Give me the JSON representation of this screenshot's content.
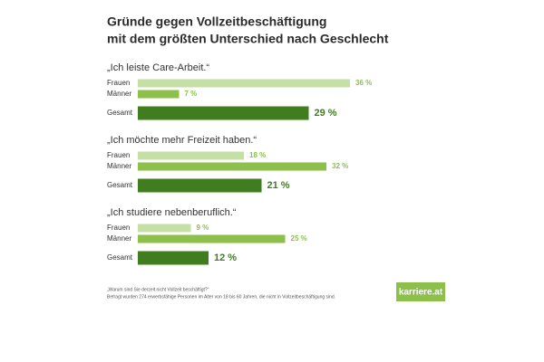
{
  "chart_data": {
    "type": "bar",
    "title": [
      "Gründe gegen Vollzeitbeschäftigung",
      "mit dem größten Unterschied nach Geschlecht"
    ],
    "categories": [
      "„Ich leiste Care-Arbeit.“",
      "„Ich möchte mehr Freizeit haben.“",
      "„Ich studiere nebenberuflich.“"
    ],
    "series": [
      {
        "name": "Frauen",
        "color": "#c5e0a5",
        "values": [
          36,
          18,
          9
        ],
        "value_labels": [
          "36 %",
          "18 %",
          "9 %"
        ]
      },
      {
        "name": "Männer",
        "color": "#8cc04a",
        "values": [
          7,
          32,
          25
        ],
        "value_labels": [
          "7 %",
          "32 %",
          "25 %"
        ]
      },
      {
        "name": "Gesamt",
        "color": "#3f7d1e",
        "values": [
          29,
          21,
          12
        ],
        "value_labels": [
          "29 %",
          "21 %",
          "12 %"
        ]
      }
    ],
    "footnotes": [
      "„Warum sind Sie derzeit nicht Vollzeit beschäftigt?“",
      "Befragt wurden 274 erwerbsfähige Personen im Alter von 18 bis 60 Jahren, die nicht in Vollzeitbeschäftigung sind."
    ],
    "logo": "karriere.at"
  }
}
